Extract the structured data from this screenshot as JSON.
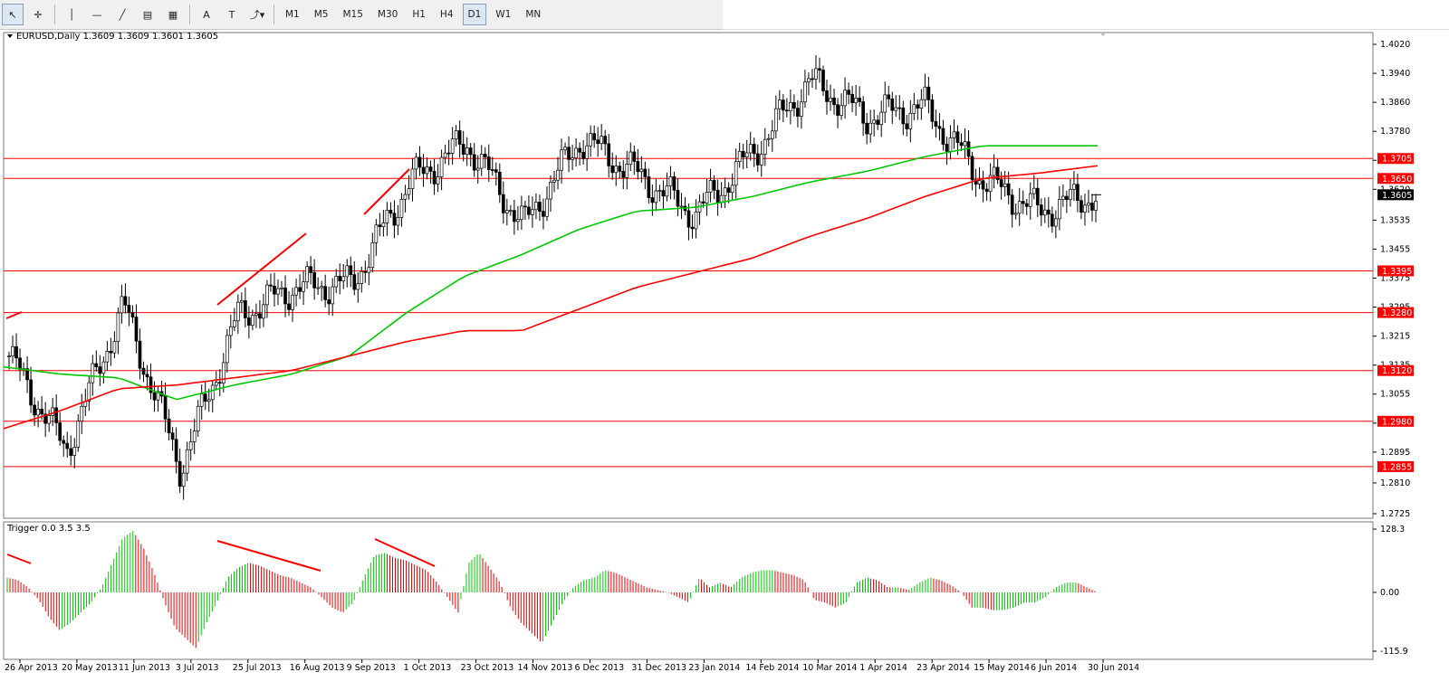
{
  "toolbar": {
    "tools": [
      {
        "name": "cursor-tool-icon",
        "glyph": "↖"
      },
      {
        "name": "crosshair-tool-icon",
        "glyph": "✛"
      },
      {
        "name": "vertical-line-tool-icon",
        "glyph": "│"
      },
      {
        "name": "horizontal-line-tool-icon",
        "glyph": "—"
      },
      {
        "name": "trend-line-tool-icon",
        "glyph": "╱"
      },
      {
        "name": "fibonacci-tool-icon",
        "glyph": "▤"
      },
      {
        "name": "grid-tool-icon",
        "glyph": "▦"
      },
      {
        "name": "text-tool-icon",
        "glyph": "A"
      },
      {
        "name": "label-tool-icon",
        "glyph": "T"
      },
      {
        "name": "arrows-tool-icon",
        "glyph": "⤴▾"
      }
    ],
    "timeframes": [
      "M1",
      "M5",
      "M15",
      "M30",
      "H1",
      "H4",
      "D1",
      "W1",
      "MN"
    ],
    "active_timeframe": "D1"
  },
  "main_chart": {
    "title": "EURUSD,Daily  1.3609 1.3609 1.3601 1.3605",
    "price_ticks": [
      "1.4020",
      "1.3940",
      "1.3860",
      "1.3780",
      "1.3700",
      "1.3620",
      "1.3535",
      "1.3455",
      "1.3375",
      "1.3295",
      "1.3215",
      "1.3135",
      "1.3055",
      "1.2975",
      "1.2895",
      "1.2810",
      "1.2725"
    ],
    "level_labels": [
      {
        "text": "1.3705",
        "color": "#ff0000"
      },
      {
        "text": "1.3650",
        "color": "#ff0000"
      },
      {
        "text": "1.3605",
        "color": "#000000"
      },
      {
        "text": "1.3395",
        "color": "#ff0000"
      },
      {
        "text": "1.3280",
        "color": "#ff0000"
      },
      {
        "text": "1.3120",
        "color": "#ff0000"
      },
      {
        "text": "1.2980",
        "color": "#ff0000"
      },
      {
        "text": "1.2855",
        "color": "#ff0000"
      }
    ]
  },
  "chart_data": {
    "type": "line",
    "title": "EURUSD,Daily  1.3609 1.3609 1.3601 1.3605",
    "symbol": "EURUSD",
    "timeframe": "Daily",
    "last_ohlc": {
      "open": 1.3609,
      "high": 1.3609,
      "low": 1.3601,
      "close": 1.3605
    },
    "x": [
      "26 Apr 2013",
      "20 May 2013",
      "11 Jun 2013",
      "3 Jul 2013",
      "25 Jul 2013",
      "16 Aug 2013",
      "9 Sep 2013",
      "1 Oct 2013",
      "23 Oct 2013",
      "14 Nov 2013",
      "6 Dec 2013",
      "31 Dec 2013",
      "23 Jan 2014",
      "14 Feb 2014",
      "10 Mar 2014",
      "1 Apr 2014",
      "23 Apr 2014",
      "15 May 2014",
      "6 Jun 2014",
      "30 Jun 2014"
    ],
    "ylim": [
      1.2725,
      1.402
    ],
    "series": [
      {
        "values": [
          1.316,
          1.29,
          1.33,
          1.285,
          1.327,
          1.335,
          1.336,
          1.364,
          1.375,
          1.352,
          1.376,
          1.366,
          1.355,
          1.372,
          1.392,
          1.382,
          1.385,
          1.365,
          1.356,
          1.3605
        ],
        "color": "#000000"
      },
      {
        "values": [
          1.313,
          1.311,
          1.31,
          1.304,
          1.308,
          1.311,
          1.316,
          1.328,
          1.338,
          1.344,
          1.351,
          1.356,
          1.357,
          1.36,
          1.364,
          1.367,
          1.371,
          1.374,
          1.374,
          1.374
        ],
        "color": "#00c800"
      },
      {
        "values": [
          1.296,
          1.301,
          1.307,
          1.308,
          1.31,
          1.312,
          1.316,
          1.32,
          1.323,
          1.323,
          1.329,
          1.335,
          1.339,
          1.343,
          1.349,
          1.354,
          1.36,
          1.365,
          1.3665,
          1.3685
        ],
        "color": "#ff0000"
      }
    ],
    "horizontal_levels": [
      1.3705,
      1.365,
      1.3395,
      1.328,
      1.312,
      1.298,
      1.2855
    ],
    "current_price": 1.3605
  },
  "indicator": {
    "title": "Trigger 0.0 3.5 3.5",
    "ticks": [
      "128.3",
      "0.00",
      "-115.9"
    ],
    "values": [
      30,
      25,
      10,
      -15,
      -50,
      -75,
      -60,
      -40,
      -20,
      10,
      60,
      110,
      125,
      90,
      40,
      -20,
      -70,
      -90,
      -110,
      -60,
      -20,
      30,
      50,
      60,
      55,
      45,
      35,
      30,
      20,
      10,
      -10,
      -30,
      -40,
      -20,
      30,
      75,
      80,
      70,
      65,
      55,
      45,
      20,
      -10,
      -40,
      60,
      80,
      50,
      20,
      -30,
      -60,
      -80,
      -100,
      -60,
      -20,
      10,
      25,
      30,
      45,
      40,
      30,
      20,
      10,
      5,
      0,
      -10,
      -20,
      30,
      10,
      20,
      10,
      30,
      40,
      45,
      45,
      40,
      35,
      25,
      -15,
      -20,
      -30,
      -20,
      20,
      30,
      25,
      10,
      10,
      5,
      20,
      30,
      25,
      15,
      0,
      -30,
      -30,
      -35,
      -35,
      -30,
      -20,
      -20,
      -10,
      10,
      20,
      20,
      10,
      0
    ]
  }
}
